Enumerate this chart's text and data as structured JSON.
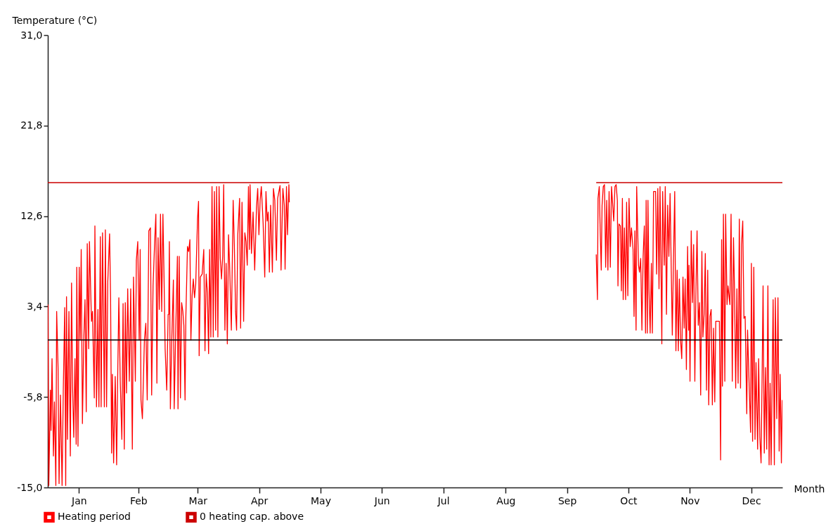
{
  "chart_data": {
    "type": "line",
    "ylabel": "Temperature (°C)",
    "xlabel": "Month",
    "xlim": [
      "--01-01",
      "--12-31T23:59"
    ],
    "ylim": [
      -15,
      31
    ],
    "yticks": [
      {
        "value": -15,
        "label": "-15,0"
      },
      {
        "value": -5.8,
        "label": "-5,8"
      },
      {
        "value": 3.4,
        "label": "3,4"
      },
      {
        "value": 12.6,
        "label": "12,6"
      },
      {
        "value": 21.8,
        "label": "21,8"
      },
      {
        "value": 31,
        "label": "31,0"
      }
    ],
    "xticks": [
      {
        "value": "--01-16T12:00",
        "label": "Jan"
      },
      {
        "value": "--02-15",
        "label": "Feb"
      },
      {
        "value": "--03-16T12:00",
        "label": "Mar"
      },
      {
        "value": "--04-16",
        "label": "Apr"
      },
      {
        "value": "--05-16T12:00",
        "label": "May"
      },
      {
        "value": "--06-16",
        "label": "Jun"
      },
      {
        "value": "--07-16T12:00",
        "label": "Jul"
      },
      {
        "value": "--08-16T12:00",
        "label": "Aug"
      },
      {
        "value": "--09-16",
        "label": "Sep"
      },
      {
        "value": "--10-16T12:00",
        "label": "Oct"
      },
      {
        "value": "--11-16",
        "label": "Nov"
      },
      {
        "value": "--12-16T12:00",
        "label": "Dec"
      }
    ],
    "legend": "bottom",
    "ref_lines": [
      {
        "axis": "y",
        "value": 0,
        "color": "#000000"
      }
    ],
    "series": [
      {
        "name": "Heating period",
        "color": "#ff0000",
        "x": [
          "--01-01T02:24",
          "--01-01T12:00",
          "--01-02T07:12",
          "--01-02T14:24",
          "--01-03T02:24",
          "--01-03T19:12",
          "--01-04T07:12",
          "--01-05T00:00",
          "--01-05T09:36",
          "--01-06T02:24",
          "--01-06T14:24",
          "--01-07T07:12",
          "--01-08T02:24",
          "--01-08T16:48",
          "--01-09T09:36",
          "--01-09T21:36",
          "--01-10T07:12",
          "--01-10T19:12",
          "--01-11T12:00",
          "--01-12T04:48",
          "--01-12T19:12",
          "--01-13T07:12",
          "--01-13T21:36",
          "--01-14T12:00",
          "--01-15T02:24",
          "--01-15T09:36",
          "--01-16T00:00",
          "--01-16T14:24",
          "--01-17T02:24",
          "--01-17T14:24",
          "--01-18T04:48",
          "--01-18T21:36",
          "--01-19T12:00",
          "--01-20T02:24",
          "--01-20T14:24",
          "--01-21T07:12",
          "--01-21T16:48",
          "--01-22T16:48",
          "--01-23T04:48",
          "--01-24T02:24",
          "--01-24T09:36",
          "--01-25T04:48",
          "--01-25T21:36",
          "--01-26T09:36",
          "--01-27T02:24",
          "--01-27T12:00",
          "--01-28T04:48",
          "--01-29T02:24",
          "--01-29T14:24",
          "--01-30T04:48",
          "--01-30T19:12",
          "--01-31T16:48",
          "--02-01T04:48",
          "--02-01T16:48",
          "--02-02T02:24",
          "--02-02T16:48",
          "--02-03T12:00",
          "--02-04T04:48",
          "--02-04T16:48",
          "--02-05T07:12",
          "--02-06T00:00",
          "--02-06T19:12",
          "--02-07T09:36",
          "--02-08T00:00",
          "--02-08T12:00",
          "--02-09T02:24",
          "--02-09T16:48",
          "--02-10T12:00",
          "--02-11T04:48",
          "--02-12T00:00",
          "--02-12T14:24",
          "--02-13T12:00",
          "--02-14T00:00",
          "--02-14T16:48",
          "--02-15T09:36",
          "--02-15T21:36",
          "--02-16T07:12",
          "--02-17T00:00",
          "--02-18T00:00",
          "--02-18T16:48",
          "--02-19T09:36",
          "--02-20T04:48",
          "--02-21T00:00",
          "--02-21T14:24",
          "--02-22T07:12",
          "--02-23T02:24",
          "--02-23T16:48",
          "--02-24T04:48",
          "--02-24T19:12",
          "--02-25T09:36",
          "--02-26T00:00",
          "--02-26T14:24",
          "--02-27T04:48",
          "--02-27T16:48",
          "--02-28T07:12",
          "--03-01T02:24",
          "--03-01T19:12",
          "--03-02T02:24",
          "--03-02T09:36",
          "--03-02T21:36",
          "--03-03T14:24",
          "--03-04T09:36",
          "--03-04T19:12",
          "--03-05T14:24",
          "--03-06T09:36",
          "--03-06T16:48",
          "--03-07T07:12",
          "--03-07T21:36",
          "--03-08T12:00",
          "--03-09T02:24",
          "--03-09T14:24",
          "--03-10T04:48",
          "--03-10T14:24",
          "--03-11T09:36",
          "--03-12T00:00",
          "--03-12T14:24",
          "--03-13T02:24",
          "--03-13T16:48",
          "--03-14T07:12",
          "--03-14T21:36",
          "--03-15T12:00",
          "--03-16T09:36",
          "--03-16T21:36",
          "--03-17T04:48",
          "--03-17T19:12",
          "--03-18T16:48",
          "--03-19T12:00",
          "--03-20T02:24",
          "--03-20T16:48",
          "--03-21T07:12",
          "--03-21T21:36",
          "--03-22T09:36",
          "--03-23T00:00",
          "--03-23T14:24",
          "--03-24T04:48",
          "--03-24T19:12",
          "--03-25T09:36",
          "--03-25T21:36",
          "--03-26T12:00",
          "--03-27T02:24",
          "--03-27T16:48",
          "--03-28T07:12",
          "--03-28T21:36",
          "--03-29T09:36",
          "--03-30T00:00",
          "--03-30T14:24",
          "--03-31T04:48",
          "--03-31T19:12",
          "--04-01T07:12",
          "--04-02T04:48",
          "--04-03T02:24",
          "--04-03T16:48",
          "--04-04T07:12",
          "--04-04T19:12",
          "--04-05T09:36",
          "--04-06T07:12",
          "--04-06T19:12",
          "--04-07T12:00",
          "--04-08T07:12",
          "--04-08T21:36",
          "--04-09T12:00",
          "--04-10T02:24",
          "--04-10T16:48",
          "--04-11T04:48",
          "--04-11T12:00",
          "--04-12T04:48",
          "--04-13T00:00",
          "--04-13T19:12",
          "--04-14T16:48",
          "--04-15T07:12",
          "--04-15T21:36",
          "--04-16T12:00",
          "--04-17T02:24",
          "--04-18T00:00",
          "--04-18T19:12",
          "--04-19T09:36",
          "--04-20T00:00",
          "--04-20T12:00",
          "--04-21T02:24",
          "--04-21T16:48",
          "--04-22T14:24",
          "--04-23T02:24",
          "--04-23T19:12",
          "--04-24T14:24",
          "--04-25T04:48",
          "--04-26T09:36",
          "--04-26T21:36",
          "--04-27T19:12",
          "--04-28T12:00",
          "--04-28T21:36",
          "--04-29T14:24",
          "--04-30T02:24",
          "--04-30T19:12",
          "--05-01T00:00",
          "--07-16T00:00",
          "--09-30T12:00",
          "--10-01T02:24",
          "--10-01T09:36",
          "--10-02T00:00",
          "--10-02T12:00",
          "--10-03T00:00",
          "--10-03T09:36",
          "--10-04T00:00",
          "--10-04T14:24",
          "--10-05T04:48",
          "--10-05T16:48",
          "--10-06T07:12",
          "--10-06T21:36",
          "--10-07T12:00",
          "--10-08T02:24",
          "--10-08T16:48",
          "--10-09T04:48",
          "--10-09T19:12",
          "--10-10T09:36",
          "--10-11T00:00",
          "--10-11T07:12",
          "--10-11T19:12",
          "--10-12T12:00",
          "--10-13T00:00",
          "--10-13T12:00",
          "--10-13T21:36",
          "--10-14T12:00",
          "--10-15T02:24",
          "--10-15T14:24",
          "--10-16T04:48",
          "--10-16T19:12",
          "--10-17T09:36",
          "--10-18T00:00",
          "--10-18T19:12",
          "--10-19T07:12",
          "--10-19T16:48",
          "--10-20T07:12",
          "--10-20T14:24",
          "--10-21T12:00",
          "--10-22T00:00",
          "--10-22T14:24",
          "--10-23T04:48",
          "--10-23T19:12",
          "--10-24T09:36",
          "--10-25T00:00",
          "--10-25T07:12",
          "--10-25T21:36",
          "--10-26T04:48",
          "--10-26T16:48",
          "--10-27T07:12",
          "--10-27T21:36",
          "--10-28T09:36",
          "--10-29T00:00",
          "--10-30T00:00",
          "--10-30T12:00",
          "--10-31T02:24",
          "--10-31T16:48",
          "--11-01T04:48",
          "--11-01T19:12",
          "--11-02T02:24",
          "--11-02T12:00",
          "--11-03T07:12",
          "--11-03T19:12",
          "--11-04T09:36",
          "--11-05T00:00",
          "--11-05T14:24",
          "--11-06T04:48",
          "--11-06T19:12",
          "--11-07T07:12",
          "--11-07T21:36",
          "--11-08T12:00",
          "--11-09T02:24",
          "--11-09T16:48",
          "--11-10T07:12",
          "--11-10T19:12",
          "--11-11T09:36",
          "--11-12T00:00",
          "--11-12T14:24",
          "--11-13T04:48",
          "--11-13T16:48",
          "--11-14T07:12",
          "--11-14T21:36",
          "--11-15T09:36",
          "--11-15T14:24",
          "--11-16T02:24",
          "--11-16T16:48",
          "--11-17T07:12",
          "--11-17T21:36",
          "--11-18T12:00",
          "--11-19T00:00",
          "--11-19T14:24",
          "--11-20T04:48",
          "--11-20T19:12",
          "--11-21T09:36",
          "--11-22T00:00",
          "--11-22T12:00",
          "--11-23T02:24",
          "--11-23T16:48",
          "--11-24T07:12",
          "--11-24T21:36",
          "--11-25T09:36",
          "--11-26T00:00",
          "--11-26T14:24",
          "--11-27T04:48",
          "--11-27T19:12",
          "--11-28T09:36",
          "--11-28T21:36",
          "--11-30T02:24",
          "--11-30T16:48",
          "--12-01T07:12",
          "--12-01T19:12",
          "--12-02T04:48",
          "--12-02T16:48",
          "--12-03T09:36",
          "--12-03T19:12",
          "--12-04T12:00",
          "--12-05T00:00",
          "--12-05T21:36",
          "--12-06T12:00",
          "--12-07T02:24",
          "--12-07T16:48",
          "--12-08T04:48",
          "--12-08T19:12",
          "--12-09T09:36",
          "--12-10T00:00",
          "--12-10T14:24",
          "--12-11T04:48",
          "--12-11T16:48",
          "--12-12T07:12",
          "--12-12T21:36",
          "--12-13T12:00",
          "--12-14T07:12",
          "--12-14T16:48",
          "--12-15T12:00",
          "--12-16T04:48",
          "--12-16T14:24",
          "--12-17T04:48",
          "--12-17T19:12",
          "--12-18T09:36",
          "--12-18T21:36",
          "--12-19T16:48",
          "--12-20T04:48",
          "--12-20T19:12",
          "--12-21T09:36",
          "--12-21T21:36",
          "--12-22T09:36",
          "--12-23T00:00",
          "--12-23T14:24",
          "--12-24T04:48",
          "--12-24T19:12",
          "--12-25T09:36",
          "--12-25T21:36",
          "--12-26T09:36",
          "--12-26T21:36",
          "--12-27T09:36",
          "--12-28T00:00",
          "--12-28T12:00",
          "--12-29T04:48",
          "--12-29T19:12",
          "--12-30T09:36",
          "--12-30T21:36",
          "--12-31T12:00",
          "--12-31T21:36"
        ],
        "values": [
          3.6,
          -14.8,
          -5.1,
          -9.2,
          -1.9,
          -11.8,
          -6.3,
          -14.8,
          2.9,
          -2.8,
          -14.6,
          -5.6,
          -14.8,
          -5.1,
          3.3,
          -14.8,
          4.4,
          -10.1,
          2.9,
          -11.8,
          5.8,
          -4.7,
          -9.9,
          -1.9,
          -10.6,
          7.4,
          -10.8,
          7.4,
          0.0,
          9.2,
          -8.5,
          0.3,
          4.1,
          -7.3,
          9.8,
          -0.9,
          10.0,
          1.9,
          2.9,
          -5.9,
          11.6,
          -6.8,
          3.1,
          -6.8,
          10.5,
          -6.8,
          10.9,
          -6.8,
          11.2,
          -6.8,
          5.9,
          10.8,
          4.3,
          -11.5,
          -3.5,
          -12.5,
          -3.7,
          -12.7,
          -4.2,
          4.3,
          -4.2,
          -10.1,
          3.7,
          -11.1,
          3.8,
          -5.4,
          5.2,
          -4.2,
          5.2,
          -11.1,
          6.4,
          -4.2,
          8.1,
          10.0,
          0.0,
          9.2,
          -6.1,
          -8.0,
          0.0,
          1.7,
          -6.1,
          11.1,
          11.4,
          -5.6,
          5.5,
          10.0,
          12.8,
          -4.4,
          10.4,
          3.1,
          12.8,
          2.9,
          12.8,
          7.1,
          -0.9,
          -5.1,
          2.6,
          2.6,
          10.0,
          -7.0,
          0.0,
          6.1,
          -7.0,
          1.2,
          8.5,
          -7.0,
          8.5,
          -5.9,
          3.8,
          2.9,
          1.5,
          -6.1,
          2.4,
          9.5,
          9.0,
          10.2,
          0.0,
          4.5,
          6.2,
          4.3,
          5.7,
          12.3,
          14.1,
          -1.6,
          6.4,
          6.7,
          9.2,
          -1.1,
          6.7,
          4.8,
          -1.4,
          9.2,
          0.3,
          15.6,
          0.3,
          15.1,
          1.0,
          15.6,
          0.3,
          15.6,
          8.3,
          6.2,
          8.5,
          15.8,
          1.0,
          7.8,
          -0.4,
          10.7,
          7.8,
          1.0,
          14.2,
          9.5,
          2.9,
          1.0,
          10.7,
          14.4,
          1.2,
          14.0,
          1.9,
          10.9,
          10.0,
          7.6,
          15.6,
          9.2,
          15.8,
          8.8,
          13.0,
          7.1,
          13.5,
          15.4,
          10.7,
          14.2,
          15.6,
          11.8,
          6.4,
          15.1,
          12.1,
          13.0,
          6.9,
          13.7,
          6.9,
          15.4,
          14.2,
          8.1,
          14.4,
          15.7,
          7.1,
          15.4,
          13.7,
          7.2,
          15.6,
          10.7,
          15.8,
          14.0,
          null,
          8.7,
          4.1,
          14.4,
          15.6,
          10.9,
          7.1,
          13.7,
          15.6,
          15.8,
          7.4,
          14.2,
          7.1,
          15.1,
          7.4,
          15.6,
          13.7,
          12.1,
          15.6,
          15.8,
          14.2,
          5.5,
          11.8,
          11.6,
          5.0,
          14.4,
          4.1,
          11.4,
          4.1,
          14.0,
          4.5,
          14.4,
          9.5,
          11.4,
          9.2,
          2.4,
          11.1,
          1.0,
          15.6,
          7.6,
          6.9,
          8.3,
          1.0,
          8.5,
          11.6,
          0.7,
          14.2,
          0.7,
          14.2,
          5.2,
          0.7,
          7.8,
          0.7,
          15.1,
          15.1,
          6.7,
          15.4,
          5.2,
          15.6,
          5.2,
          -0.4,
          15.1,
          7.6,
          15.6,
          2.6,
          13.7,
          8.5,
          14.9,
          6.9,
          0.5,
          8.3,
          15.1,
          -1.1,
          7.1,
          -1.1,
          6.2,
          0.0,
          -1.9,
          6.4,
          1.2,
          6.2,
          -3.0,
          9.5,
          1.0,
          7.6,
          -4.2,
          11.1,
          3.8,
          9.7,
          -4.2,
          4.5,
          11.1,
          1.5,
          3.8,
          -5.6,
          9.0,
          0.3,
          2.6,
          8.8,
          -5.1,
          7.1,
          -6.6,
          2.4,
          3.1,
          -6.6,
          1.2,
          -6.3,
          1.9,
          1.9,
          1.9,
          -12.2,
          10.2,
          -4.7,
          12.8,
          -4.2,
          12.8,
          3.6,
          5.5,
          3.6,
          12.8,
          -4.2,
          10.4,
          5.2,
          -4.9,
          5.2,
          -4.4,
          12.3,
          -4.9,
          9.7,
          12.1,
          2.2,
          2.4,
          -7.5,
          1.0,
          -4.7,
          -9.4,
          7.8,
          -10.3,
          7.4,
          -10.1,
          -2.3,
          -11.1,
          -1.9,
          -9.9,
          -12.5,
          -4.2,
          5.5,
          -11.5,
          -2.8,
          -11.1,
          5.5,
          -12.7,
          -4.4,
          -12.7,
          -4.2,
          4.1,
          -12.7,
          4.3,
          -8.0,
          4.3,
          -11.3,
          -3.5,
          -12.5,
          -6.1
        ]
      },
      {
        "name": "0 heating cap. above",
        "color": "#cc0000",
        "x": [
          "--01-01",
          "--05-01",
          "--07-16",
          "--09-30T12:00",
          "--12-31T23:59"
        ],
        "values": [
          16,
          16,
          null,
          16,
          16
        ]
      }
    ]
  }
}
